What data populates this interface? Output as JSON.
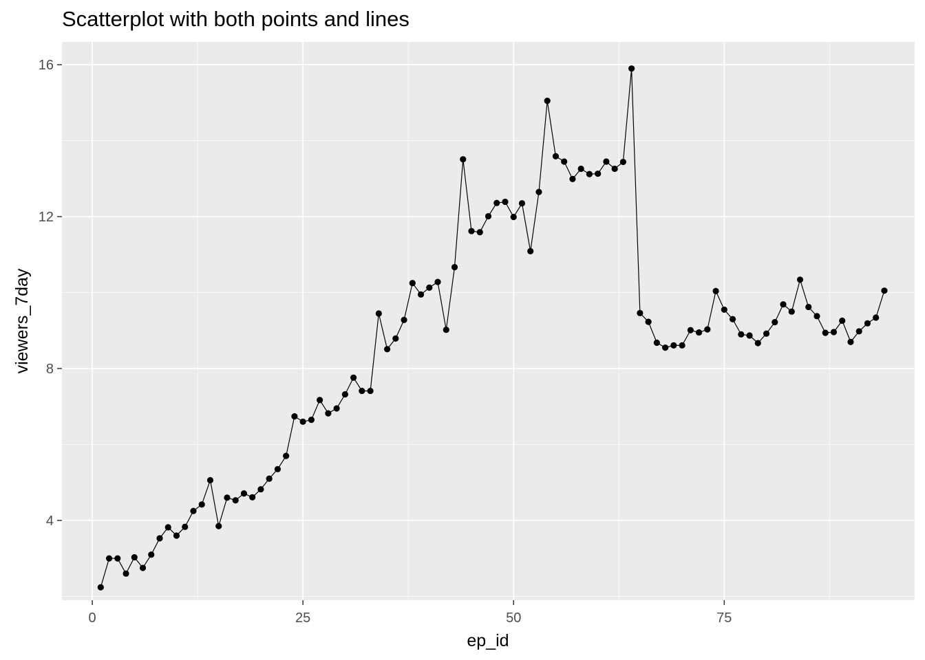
{
  "chart_data": {
    "type": "line",
    "title": "Scatterplot with both points and lines",
    "xlabel": "ep_id",
    "ylabel": "viewers_7day",
    "xlim": [
      -3.6,
      97.6
    ],
    "ylim": [
      1.9,
      16.6
    ],
    "x_ticks": [
      0,
      25,
      50,
      75
    ],
    "y_ticks": [
      4,
      8,
      12,
      16
    ],
    "grid": true,
    "legend": "none",
    "colors": {
      "panel": "#ebebeb",
      "grid": "#ffffff",
      "series": "#000000"
    },
    "series": [
      {
        "x": [
          1,
          2,
          3,
          4,
          5,
          6,
          7,
          8,
          9,
          10,
          11,
          12,
          13,
          14,
          15,
          16,
          17,
          18,
          19,
          20,
          21,
          22,
          23,
          24,
          25,
          26,
          27,
          28,
          29,
          30,
          31,
          32,
          33,
          34,
          35,
          36,
          37,
          38,
          39,
          40,
          41,
          42,
          43,
          44,
          45,
          46,
          47,
          48,
          49,
          50,
          51,
          52,
          53,
          54,
          55,
          56,
          57,
          58,
          59,
          60,
          61,
          62,
          63,
          64,
          65,
          66,
          67,
          68,
          69,
          70,
          71,
          72,
          73,
          74,
          75,
          76,
          77,
          78,
          79,
          80,
          81,
          82,
          83,
          84,
          85,
          86,
          87,
          88,
          89,
          90,
          91,
          92,
          93,
          94
        ],
        "values": [
          2.24,
          3.0,
          3.0,
          2.6,
          3.03,
          2.75,
          3.1,
          3.53,
          3.82,
          3.6,
          3.83,
          4.25,
          4.42,
          5.06,
          3.85,
          4.6,
          4.53,
          4.71,
          4.61,
          4.82,
          5.1,
          5.35,
          5.7,
          6.74,
          6.6,
          6.65,
          7.17,
          6.82,
          6.95,
          7.32,
          7.76,
          7.41,
          7.41,
          9.45,
          8.51,
          8.79,
          9.28,
          10.25,
          9.95,
          10.13,
          10.28,
          9.02,
          10.67,
          13.51,
          11.62,
          11.59,
          12.01,
          12.36,
          12.39,
          11.99,
          12.35,
          11.09,
          12.65,
          15.05,
          13.59,
          13.45,
          12.99,
          13.26,
          13.12,
          13.13,
          13.45,
          13.26,
          13.44,
          15.9,
          9.46,
          9.23,
          8.68,
          8.55,
          8.61,
          8.61,
          9.01,
          8.95,
          9.03,
          10.04,
          9.55,
          9.3,
          8.9,
          8.87,
          8.67,
          8.92,
          9.22,
          9.69,
          9.5,
          10.34,
          9.62,
          9.38,
          8.94,
          8.96,
          9.26,
          8.7,
          8.98,
          9.19,
          9.34,
          10.05
        ]
      }
    ]
  }
}
